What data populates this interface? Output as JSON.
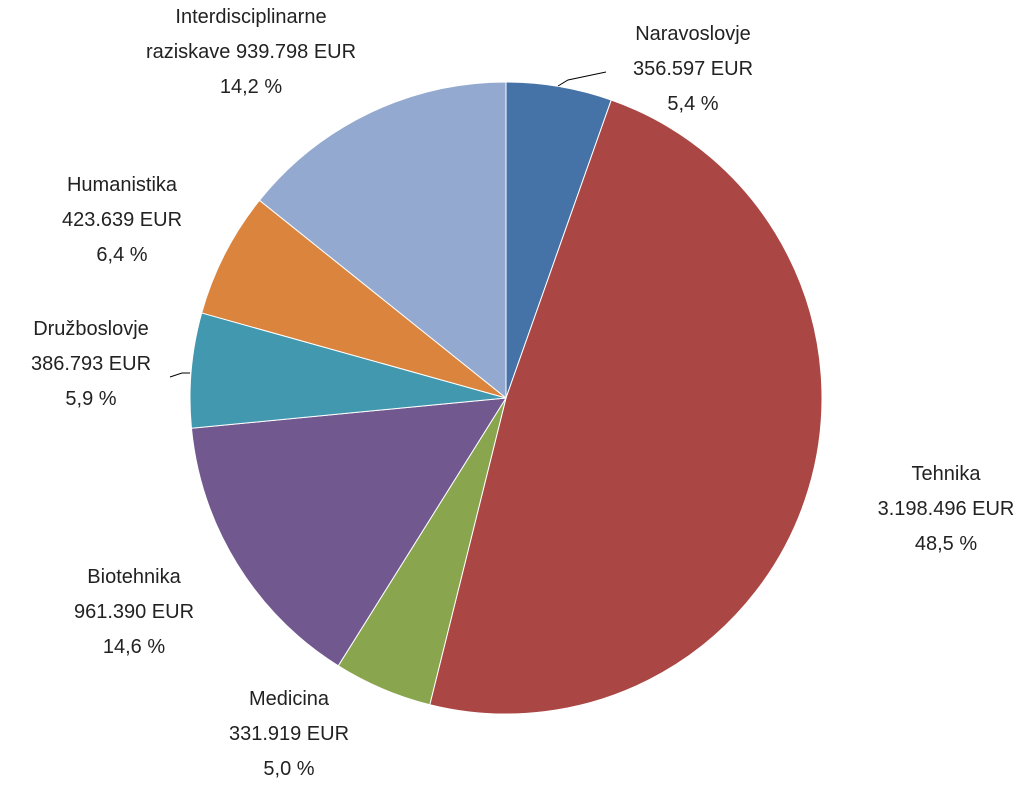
{
  "chart_data": {
    "type": "pie",
    "categories": [
      "Naravoslovje",
      "Tehnika",
      "Medicina",
      "Biotehnika",
      "Družboslovje",
      "Humanistika",
      "Interdisciplinarne raziskave"
    ],
    "values": [
      356597,
      3198496,
      331919,
      961390,
      386793,
      423639,
      939798
    ],
    "value_labels": [
      "356.597 EUR",
      "3.198.496 EUR",
      "331.919 EUR",
      "961.390 EUR",
      "386.793 EUR",
      "423.639 EUR",
      "939.798 EUR"
    ],
    "percents": [
      5.4,
      48.5,
      5.0,
      14.6,
      5.9,
      6.4,
      14.2
    ],
    "percent_labels": [
      "5,4 %",
      "48,5 %",
      "5,0 %",
      "14,6 %",
      "5,9 %",
      "6,4 %",
      "14,2 %"
    ],
    "colors": [
      "#4572a7",
      "#aa4643",
      "#89a54e",
      "#71588f",
      "#4198af",
      "#db843d",
      "#93a9cf"
    ]
  }
}
